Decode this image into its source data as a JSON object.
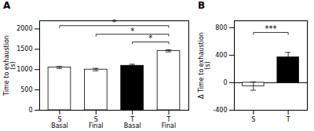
{
  "chart_data": [
    {
      "type": "bar",
      "title": "A",
      "categories": [
        "S\nBasal",
        "S\nFinal",
        "T\nBasal",
        "T\nFinal"
      ],
      "values": [
        1050,
        1000,
        1095,
        1460
      ],
      "errors": [
        25,
        30,
        35,
        25
      ],
      "colors": [
        "white",
        "white",
        "black",
        "white"
      ],
      "ylabel": "Time to exhaustion\n(s)",
      "ylim": [
        0,
        2200
      ],
      "yticks": [
        0,
        500,
        1000,
        1500,
        2000
      ],
      "significance": [
        {
          "between": [
            "S\nBasal",
            "T\nFinal"
          ],
          "y": 2080,
          "label": "*"
        },
        {
          "between": [
            "S\nFinal",
            "T\nFinal"
          ],
          "y": 1870,
          "label": "*"
        },
        {
          "between": [
            "T\nBasal",
            "T\nFinal"
          ],
          "y": 1680,
          "label": "*"
        }
      ]
    },
    {
      "type": "bar",
      "title": "B",
      "categories": [
        "S",
        "T"
      ],
      "values": [
        -50,
        370
      ],
      "errors": [
        60,
        70
      ],
      "colors": [
        "white",
        "black"
      ],
      "ylabel": "Δ Time to exhaustion\n(s)",
      "ylim": [
        -400,
        900
      ],
      "yticks": [
        -400,
        0,
        400,
        800
      ],
      "significance": [
        {
          "between": [
            "S",
            "T"
          ],
          "y": 730,
          "label": "***"
        }
      ]
    }
  ]
}
